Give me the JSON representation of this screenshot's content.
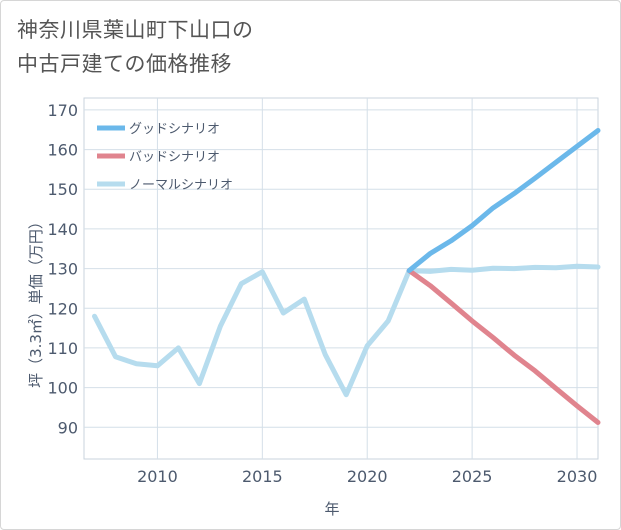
{
  "title": {
    "line1": "神奈川県葉山町下山口の",
    "line2": "中古戸建ての価格推移"
  },
  "chart_data": {
    "type": "line",
    "xlabel": "年",
    "ylabel": "坪（3.3㎡）単価（万円）",
    "xlim": [
      2006.5,
      2031
    ],
    "ylim": [
      82,
      173
    ],
    "x_ticks": [
      2010,
      2015,
      2020,
      2025,
      2030
    ],
    "y_ticks": [
      90,
      100,
      110,
      120,
      130,
      140,
      150,
      160,
      170
    ],
    "grid": true,
    "legend_position": "top-left",
    "series": [
      {
        "name": "グッドシナリオ",
        "color": "#6bb8ea",
        "x": [
          2022,
          2023,
          2024,
          2025,
          2026,
          2027,
          2028,
          2029,
          2030,
          2031
        ],
        "y": [
          129.5,
          133.8,
          137.0,
          140.8,
          145.3,
          148.9,
          152.8,
          156.8,
          160.8,
          164.8
        ]
      },
      {
        "name": "バッドシナリオ",
        "color": "#e0848e",
        "x": [
          2022,
          2023,
          2024,
          2025,
          2026,
          2027,
          2028,
          2029,
          2030,
          2031
        ],
        "y": [
          129.5,
          125.7,
          121.3,
          116.8,
          112.6,
          108.2,
          104.2,
          99.8,
          95.4,
          91.2
        ]
      },
      {
        "name": "ノーマルシナリオ",
        "color": "#b6dcee",
        "x": [
          2007,
          2008,
          2009,
          2010,
          2011,
          2012,
          2013,
          2014,
          2015,
          2016,
          2017,
          2018,
          2019,
          2020,
          2021,
          2022,
          2023,
          2024,
          2025,
          2026,
          2027,
          2028,
          2029,
          2030,
          2031
        ],
        "y": [
          118,
          107.8,
          106,
          105.5,
          110,
          101,
          115.5,
          126.2,
          129.2,
          118.8,
          122.3,
          108.3,
          98.2,
          110.5,
          116.8,
          129.5,
          129.3,
          129.8,
          129.6,
          130.1,
          130.0,
          130.3,
          130.2,
          130.6,
          130.4
        ]
      }
    ]
  }
}
